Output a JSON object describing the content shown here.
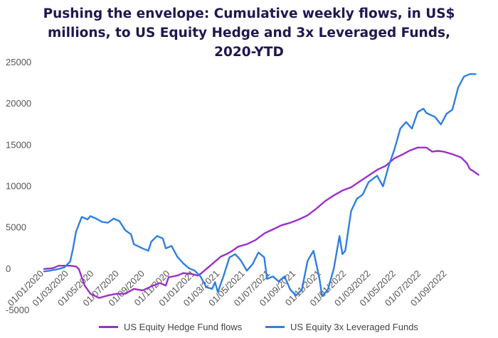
{
  "colors": {
    "hedge": "#9b2fc9",
    "leveraged": "#2e7fe0",
    "title": "#1d1850"
  },
  "chart_data": {
    "type": "line",
    "title_lines": [
      "Pushing the envelope: Cumulative weekly flows, in US$",
      "millions, to US Equity Hedge and 3x Leveraged Funds,",
      "2020-YTD"
    ],
    "xlabel": "",
    "ylabel": "",
    "ylim": [
      -5000,
      25000
    ],
    "yticks": [
      {
        "value": 25000,
        "label": "25000"
      },
      {
        "value": 20000,
        "label": "20000"
      },
      {
        "value": 15000,
        "label": "15000"
      },
      {
        "value": 10000,
        "label": "10000"
      },
      {
        "value": 5000,
        "label": "5000"
      },
      {
        "value": 0,
        "label": "0"
      },
      {
        "value": -5000,
        "label": "-5000"
      }
    ],
    "xlim": [
      "2020-01-01",
      "2022-11-15"
    ],
    "xticks": [
      {
        "date": "2020-01-01",
        "label": "01/01/2020"
      },
      {
        "date": "2020-03-01",
        "label": "01/03/2020"
      },
      {
        "date": "2020-05-01",
        "label": "01/05/2020"
      },
      {
        "date": "2020-07-01",
        "label": "01/07/2020"
      },
      {
        "date": "2020-09-01",
        "label": "01/09/2020"
      },
      {
        "date": "2020-11-01",
        "label": "01/11/2020"
      },
      {
        "date": "2021-01-01",
        "label": "01/01/2021"
      },
      {
        "date": "2021-03-01",
        "label": "01/03/2021"
      },
      {
        "date": "2021-05-01",
        "label": "01/05/2021"
      },
      {
        "date": "2021-07-01",
        "label": "01/07/2021"
      },
      {
        "date": "2021-09-01",
        "label": "01/09/2021"
      },
      {
        "date": "2021-11-01",
        "label": "01/11/2021"
      },
      {
        "date": "2022-01-01",
        "label": "01/01/2022"
      },
      {
        "date": "2022-03-01",
        "label": "01/03/2022"
      },
      {
        "date": "2022-05-01",
        "label": "01/05/2022"
      },
      {
        "date": "2022-07-01",
        "label": "01/07/2022"
      },
      {
        "date": "2022-09-01",
        "label": "01/09/2022"
      }
    ],
    "grid": false,
    "legend_position": "bottom",
    "series": [
      {
        "name": "US Equity Hedge Fund flows",
        "points": [
          [
            "2020-01-01",
            0
          ],
          [
            "2020-01-22",
            100
          ],
          [
            "2020-02-05",
            400
          ],
          [
            "2020-03-04",
            400
          ],
          [
            "2020-03-18",
            300
          ],
          [
            "2020-03-25",
            0
          ],
          [
            "2020-04-08",
            -2000
          ],
          [
            "2020-04-22",
            -3000
          ],
          [
            "2020-05-13",
            -3500
          ],
          [
            "2020-06-03",
            -3200
          ],
          [
            "2020-06-24",
            -3000
          ],
          [
            "2020-07-15",
            -3000
          ],
          [
            "2020-08-05",
            -2400
          ],
          [
            "2020-08-26",
            -2600
          ],
          [
            "2020-09-16",
            -2100
          ],
          [
            "2020-10-07",
            -1700
          ],
          [
            "2020-10-21",
            -2000
          ],
          [
            "2020-10-28",
            -1000
          ],
          [
            "2020-11-18",
            -800
          ],
          [
            "2020-12-02",
            -500
          ],
          [
            "2020-12-23",
            -600
          ],
          [
            "2021-01-06",
            -800
          ],
          [
            "2021-01-13",
            -600
          ],
          [
            "2021-01-27",
            0
          ],
          [
            "2021-02-10",
            600
          ],
          [
            "2021-03-03",
            1500
          ],
          [
            "2021-03-17",
            1800
          ],
          [
            "2021-03-31",
            2200
          ],
          [
            "2021-04-14",
            2700
          ],
          [
            "2021-05-05",
            3000
          ],
          [
            "2021-05-26",
            3500
          ],
          [
            "2021-06-16",
            4300
          ],
          [
            "2021-07-07",
            4800
          ],
          [
            "2021-07-28",
            5300
          ],
          [
            "2021-08-18",
            5600
          ],
          [
            "2021-09-08",
            6000
          ],
          [
            "2021-09-29",
            6500
          ],
          [
            "2021-10-20",
            7300
          ],
          [
            "2021-11-10",
            8200
          ],
          [
            "2021-12-01",
            8900
          ],
          [
            "2021-12-22",
            9500
          ],
          [
            "2022-01-12",
            9900
          ],
          [
            "2022-02-02",
            10600
          ],
          [
            "2022-02-23",
            11300
          ],
          [
            "2022-03-16",
            12000
          ],
          [
            "2022-04-06",
            12500
          ],
          [
            "2022-04-27",
            13400
          ],
          [
            "2022-05-18",
            13900
          ],
          [
            "2022-06-01",
            14300
          ],
          [
            "2022-06-22",
            14700
          ],
          [
            "2022-07-13",
            14700
          ],
          [
            "2022-07-27",
            14200
          ],
          [
            "2022-08-10",
            14300
          ],
          [
            "2022-08-24",
            14200
          ],
          [
            "2022-09-14",
            13900
          ],
          [
            "2022-10-05",
            13500
          ],
          [
            "2022-10-19",
            12800
          ],
          [
            "2022-10-26",
            12100
          ],
          [
            "2022-11-02",
            11900
          ],
          [
            "2022-11-16",
            11400
          ]
        ]
      },
      {
        "name": "US Equity 3x Leveraged Funds",
        "points": [
          [
            "2020-01-01",
            -300
          ],
          [
            "2020-01-15",
            -200
          ],
          [
            "2020-02-05",
            0
          ],
          [
            "2020-02-19",
            200
          ],
          [
            "2020-03-04",
            900
          ],
          [
            "2020-03-11",
            2500
          ],
          [
            "2020-03-18",
            4500
          ],
          [
            "2020-04-01",
            6300
          ],
          [
            "2020-04-15",
            6000
          ],
          [
            "2020-04-22",
            6400
          ],
          [
            "2020-05-06",
            6100
          ],
          [
            "2020-05-20",
            5700
          ],
          [
            "2020-06-03",
            5600
          ],
          [
            "2020-06-17",
            6100
          ],
          [
            "2020-07-01",
            5800
          ],
          [
            "2020-07-15",
            4700
          ],
          [
            "2020-07-29",
            4200
          ],
          [
            "2020-08-05",
            3000
          ],
          [
            "2020-08-26",
            2500
          ],
          [
            "2020-09-09",
            2200
          ],
          [
            "2020-09-16",
            3300
          ],
          [
            "2020-09-30",
            4000
          ],
          [
            "2020-10-14",
            3700
          ],
          [
            "2020-10-21",
            2500
          ],
          [
            "2020-11-04",
            2800
          ],
          [
            "2020-11-18",
            1500
          ],
          [
            "2020-12-02",
            700
          ],
          [
            "2020-12-16",
            100
          ],
          [
            "2020-12-30",
            -200
          ],
          [
            "2021-01-13",
            -900
          ],
          [
            "2021-01-27",
            -2200
          ],
          [
            "2021-02-10",
            -2400
          ],
          [
            "2021-02-17",
            -1600
          ],
          [
            "2021-02-24",
            -2800
          ],
          [
            "2021-03-10",
            -800
          ],
          [
            "2021-03-24",
            1400
          ],
          [
            "2021-04-07",
            1800
          ],
          [
            "2021-04-21",
            1000
          ],
          [
            "2021-05-05",
            -200
          ],
          [
            "2021-05-19",
            600
          ],
          [
            "2021-06-02",
            2000
          ],
          [
            "2021-06-16",
            1400
          ],
          [
            "2021-06-23",
            -1200
          ],
          [
            "2021-07-07",
            -900
          ],
          [
            "2021-07-21",
            -1500
          ],
          [
            "2021-08-04",
            -900
          ],
          [
            "2021-08-18",
            -2500
          ],
          [
            "2021-09-01",
            -3200
          ],
          [
            "2021-09-15",
            -2500
          ],
          [
            "2021-09-29",
            1000
          ],
          [
            "2021-10-13",
            2200
          ],
          [
            "2021-10-27",
            -1000
          ],
          [
            "2021-11-03",
            -3300
          ],
          [
            "2021-11-17",
            -2500
          ],
          [
            "2021-12-01",
            0
          ],
          [
            "2021-12-15",
            4000
          ],
          [
            "2021-12-22",
            1800
          ],
          [
            "2021-12-29",
            2200
          ],
          [
            "2022-01-12",
            7000
          ],
          [
            "2022-01-26",
            8500
          ],
          [
            "2022-02-09",
            9000
          ],
          [
            "2022-02-23",
            10500
          ],
          [
            "2022-03-16",
            11300
          ],
          [
            "2022-03-30",
            10000
          ],
          [
            "2022-04-13",
            12500
          ],
          [
            "2022-04-27",
            14500
          ],
          [
            "2022-05-11",
            17000
          ],
          [
            "2022-05-25",
            17800
          ],
          [
            "2022-06-08",
            17000
          ],
          [
            "2022-06-22",
            19000
          ],
          [
            "2022-07-06",
            19400
          ],
          [
            "2022-07-13",
            18900
          ],
          [
            "2022-08-03",
            18400
          ],
          [
            "2022-08-17",
            17500
          ],
          [
            "2022-08-31",
            18800
          ],
          [
            "2022-09-14",
            19300
          ],
          [
            "2022-09-28",
            22000
          ],
          [
            "2022-10-12",
            23300
          ],
          [
            "2022-10-26",
            23600
          ],
          [
            "2022-11-09",
            23600
          ]
        ]
      }
    ]
  }
}
